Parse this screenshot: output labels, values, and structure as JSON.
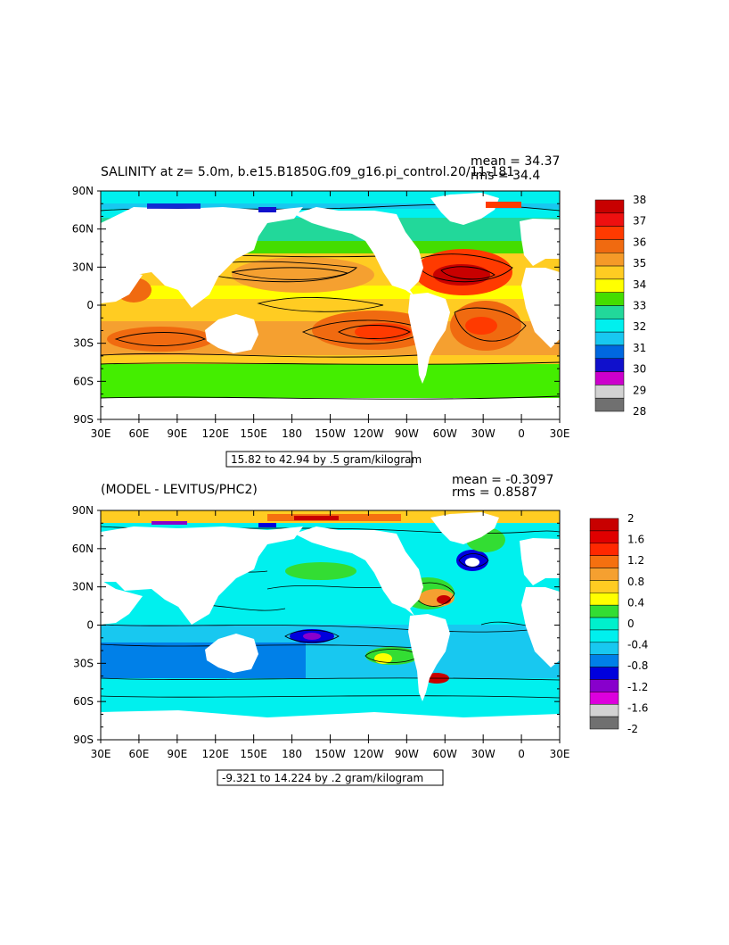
{
  "panels": [
    {
      "title": "SALINITY at z=     5.0m, b.e15.B1850G.f09_g16.pi_control.20/11-181",
      "stats": {
        "mean": "mean = 34.37",
        "rms": "rms = 34.4"
      },
      "range_label": "15.82 to 42.94 by .5 gram/kilogram",
      "lat_ticks": [
        "90N",
        "60N",
        "30N",
        "0",
        "30S",
        "60S",
        "90S"
      ],
      "lon_ticks": [
        "30E",
        "60E",
        "90E",
        "120E",
        "150E",
        "180",
        "150W",
        "120W",
        "90W",
        "60W",
        "30W",
        "0",
        "30E"
      ],
      "colorbar": {
        "labels": [
          "38",
          "37",
          "36",
          "35",
          "34",
          "33",
          "32",
          "31",
          "30",
          "29",
          "28"
        ],
        "colors": [
          "#c80000",
          "#ee1010",
          "#ff3a00",
          "#f06a10",
          "#f59a28",
          "#ffcc22",
          "#ffff00",
          "#44dd00",
          "#22d89a",
          "#00f0ee",
          "#18c8f0",
          "#0068e0",
          "#1010cc",
          "#cc00cc",
          "#d2d2d2",
          "#707070"
        ]
      }
    },
    {
      "title": "(MODEL - LEVITUS/PHC2)",
      "stats": {
        "mean": "mean = -0.3097",
        "rms": "rms = 0.8587"
      },
      "range_label": "-9.321 to 14.224 by .2 gram/kilogram",
      "lat_ticks": [
        "90N",
        "60N",
        "30N",
        "0",
        "30S",
        "60S",
        "90S"
      ],
      "lon_ticks": [
        "30E",
        "60E",
        "90E",
        "120E",
        "150E",
        "180",
        "150W",
        "120W",
        "90W",
        "60W",
        "30W",
        "0",
        "30E"
      ],
      "colorbar": {
        "labels": [
          "2",
          "1.6",
          "1.2",
          "0.8",
          "0.4",
          "0",
          "-0.4",
          "-0.8",
          "-1.2",
          "-1.6",
          "-2"
        ],
        "colors": [
          "#c80000",
          "#e00000",
          "#ff2800",
          "#f57010",
          "#f5a030",
          "#ffcc22",
          "#ffff00",
          "#33dd33",
          "#00f0cc",
          "#00f0ee",
          "#18c8f0",
          "#0080e8",
          "#0000dd",
          "#8800cc",
          "#dd00dd",
          "#d2d2d2",
          "#707070"
        ]
      }
    }
  ],
  "map_colors": {
    "top": {
      "arctic": "#00f0ee",
      "southern": "#44ee00",
      "subtropical": "#ffcc22",
      "tropical_pacific": "#f5a030",
      "atlantic_high": "#ff3a00",
      "atlantic_core": "#c80000",
      "equatorial": "#ffff00",
      "coastal": "#18c8f0",
      "low": "#1010cc",
      "land": "#ffffff"
    },
    "bottom": {
      "base": "#00f0ee",
      "mid": "#18c8f0",
      "low": "#0080e8",
      "lower": "#0000dd",
      "lowest": "#8800cc",
      "pos": "#33dd33",
      "pos2": "#ffff00",
      "pos3": "#f5a030",
      "pos4": "#c80000",
      "land": "#ffffff"
    }
  }
}
